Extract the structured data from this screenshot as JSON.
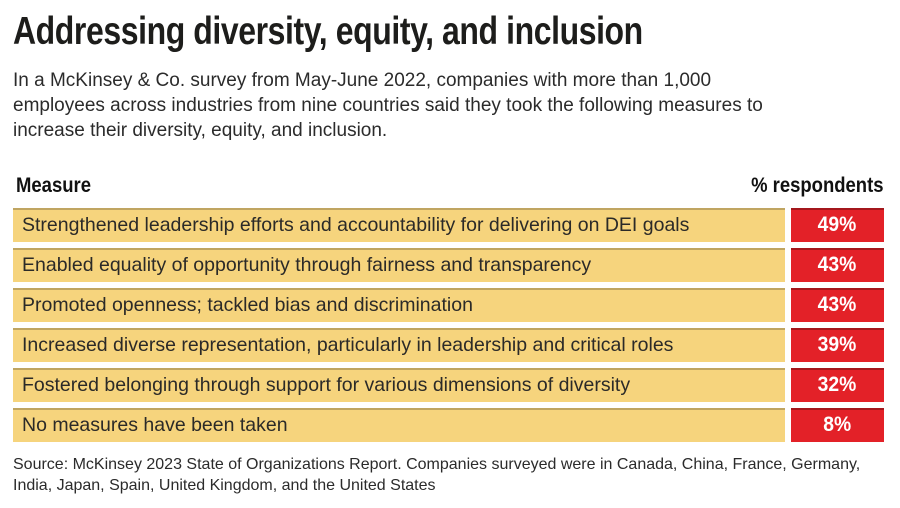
{
  "title": "Addressing diversity, equity, and inclusion",
  "subtitle_lines": {
    "0": "In a McKinsey & Co. survey from May-June 2022, companies with more than 1,000",
    "1": "employees across industries from nine countries said they took the following measures to",
    "2": "increase their diversity, equity, and inclusion."
  },
  "table": {
    "measure_header": "Measure",
    "respondents_header": "% respondents",
    "rows": [
      {
        "measure": "Strengthened leadership efforts and accountability for delivering on DEI goals",
        "value": "49%"
      },
      {
        "measure": "Enabled equality of opportunity through fairness and transparency",
        "value": "43%"
      },
      {
        "measure": "Promoted openness; tackled bias and discrimination",
        "value": "43%"
      },
      {
        "measure": "Increased diverse representation, particularly in leadership and critical roles",
        "value": "39%"
      },
      {
        "measure": "Fostered belonging through support for various dimensions of diversity",
        "value": "32%"
      },
      {
        "measure": "No measures have been taken",
        "value": "8%"
      }
    ]
  },
  "source_lines": {
    "0": "Source: McKinsey 2023 State of Organizations Report. Companies surveyed were in Canada, China, France, Germany,",
    "1": "India, Japan, Spain, United Kingdom, and the United States"
  },
  "colors": {
    "row_bg": "#f6d47d",
    "value_bg": "#e32128",
    "value_text": "#ffffff",
    "row_text": "#2b2a28",
    "title_text": "#1d1d1b"
  },
  "chart_data": {
    "type": "table",
    "title": "Addressing diversity, equity, and inclusion",
    "columns": [
      "Measure",
      "% respondents"
    ],
    "categories": [
      "Strengthened leadership efforts and accountability for delivering on DEI goals",
      "Enabled equality of opportunity through fairness and transparency",
      "Promoted openness; tackled bias and discrimination",
      "Increased diverse representation, particularly in leadership and critical roles",
      "Fostered belonging through support for various dimensions of diversity",
      "No measures have been taken"
    ],
    "values": [
      49,
      43,
      43,
      39,
      32,
      8
    ],
    "value_unit": "%",
    "layout": "horizontal rows, value badges right-aligned, no axis, no gridlines, no legend"
  }
}
